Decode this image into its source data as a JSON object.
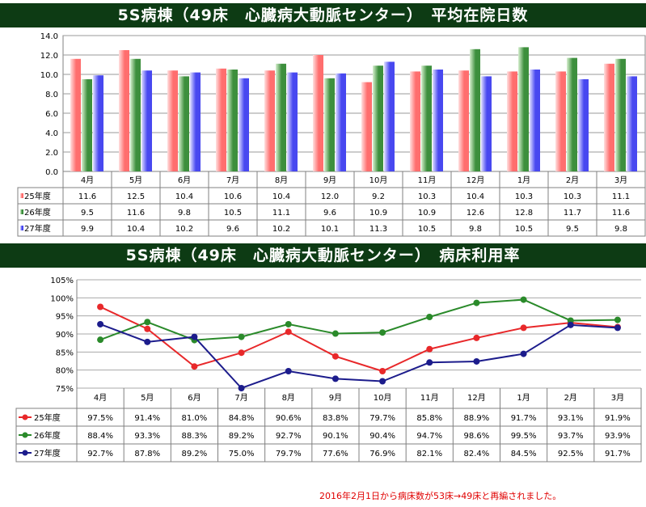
{
  "titles": {
    "chart1": "5S病棟（49床　心臓病大動脈センター）　平均在院日数",
    "chart2": "5S病棟（49床　心臓病大動脈センター）　病床利用率"
  },
  "note": "2016年2月1日から病床数が53床→49床と再編されました。",
  "colors": {
    "s25": "#e8282a",
    "s26": "#2a8a2a",
    "s27": "#1c1c8c"
  },
  "chart_data": [
    {
      "type": "bar",
      "title": "5S病棟（49床　心臓病大動脈センター）　平均在院日数",
      "categories": [
        "4月",
        "5月",
        "6月",
        "7月",
        "8月",
        "9月",
        "10月",
        "11月",
        "12月",
        "1月",
        "2月",
        "3月"
      ],
      "ylim": [
        0,
        14
      ],
      "yticks": [
        "0.0",
        "2.0",
        "4.0",
        "6.0",
        "8.0",
        "10.0",
        "12.0",
        "14.0"
      ],
      "grid": true,
      "series": [
        {
          "name": "25年度",
          "values": [
            "11.6",
            "12.5",
            "10.4",
            "10.6",
            "10.4",
            "12.0",
            "9.2",
            "10.3",
            "10.4",
            "10.3",
            "10.3",
            "11.1"
          ]
        },
        {
          "name": "26年度",
          "values": [
            "9.5",
            "11.6",
            "9.8",
            "10.5",
            "11.1",
            "9.6",
            "10.9",
            "10.9",
            "12.6",
            "12.8",
            "11.7",
            "11.6"
          ]
        },
        {
          "name": "27年度",
          "values": [
            "9.9",
            "10.4",
            "10.2",
            "9.6",
            "10.2",
            "10.1",
            "11.3",
            "10.5",
            "9.8",
            "10.5",
            "9.5",
            "9.8"
          ]
        }
      ]
    },
    {
      "type": "line",
      "title": "5S病棟（49床　心臓病大動脈センター）　病床利用率",
      "categories": [
        "4月",
        "5月",
        "6月",
        "7月",
        "8月",
        "9月",
        "10月",
        "11月",
        "12月",
        "1月",
        "2月",
        "3月"
      ],
      "ylim": [
        75,
        105
      ],
      "yticks": [
        "75%",
        "80%",
        "85%",
        "90%",
        "95%",
        "100%",
        "105%"
      ],
      "grid": true,
      "series": [
        {
          "name": "25年度",
          "values": [
            "97.5%",
            "91.4%",
            "81.0%",
            "84.8%",
            "90.6%",
            "83.8%",
            "79.7%",
            "85.8%",
            "88.9%",
            "91.7%",
            "93.1%",
            "91.9%"
          ]
        },
        {
          "name": "26年度",
          "values": [
            "88.4%",
            "93.3%",
            "88.3%",
            "89.2%",
            "92.7%",
            "90.1%",
            "90.4%",
            "94.7%",
            "98.6%",
            "99.5%",
            "93.7%",
            "93.9%"
          ]
        },
        {
          "name": "27年度",
          "values": [
            "92.7%",
            "87.8%",
            "89.2%",
            "75.0%",
            "79.7%",
            "77.6%",
            "76.9%",
            "82.1%",
            "82.4%",
            "84.5%",
            "92.5%",
            "91.7%"
          ]
        }
      ]
    }
  ]
}
